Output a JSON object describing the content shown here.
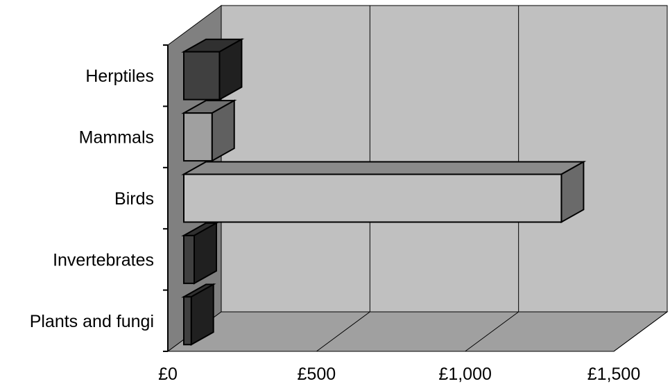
{
  "chart_data": {
    "type": "bar",
    "orientation": "horizontal",
    "three_d": true,
    "categories": [
      "Herptiles",
      "Mammals",
      "Birds",
      "Invertebrates",
      "Plants and fungi"
    ],
    "values": [
      120,
      95,
      1270,
      35,
      25
    ],
    "x_ticks": [
      "£0",
      "£500",
      "£1,000",
      "£1,500"
    ],
    "x_tick_values": [
      0,
      500,
      1000,
      1500
    ],
    "xlim": [
      0,
      1500
    ],
    "title": "",
    "xlabel": "",
    "ylabel": "",
    "grid": true,
    "legend": "none",
    "colors": {
      "back_wall": "#c0c0c0",
      "side_wall": "#808080",
      "floor": "#a0a0a0",
      "plot_background": "#ffffff",
      "bar_fronts": [
        "#404040",
        "#a0a0a0",
        "#c0c0c0",
        "#404040",
        "#404040"
      ],
      "bar_tops": [
        "#303030",
        "#707070",
        "#8a8a8a",
        "#303030",
        "#303030"
      ],
      "bar_sides": [
        "#202020",
        "#606060",
        "#6a6a6a",
        "#202020",
        "#202020"
      ]
    }
  }
}
